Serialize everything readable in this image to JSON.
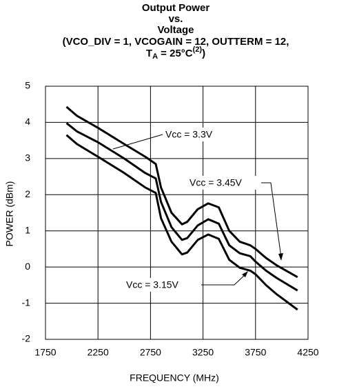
{
  "chart_data": {
    "type": "line",
    "title": [
      "Output Power",
      "vs.",
      "Voltage",
      "(VCO_DIV = 1, VCOGAIN = 12, OUTTERM = 12,"
    ],
    "title_last_line": [
      "T",
      "A",
      " = 25°C",
      "(2)",
      ")"
    ],
    "x_label": "FREQUENCY (MHz)",
    "y_label": "POWER (dBm)",
    "x": [
      1950,
      2050,
      2250,
      2500,
      2700,
      2800,
      2850,
      2950,
      3050,
      3100,
      3200,
      3300,
      3400,
      3500,
      3600,
      3700,
      3750,
      3850,
      3950,
      4150
    ],
    "series": [
      {
        "name": "Vcc = 3.45V",
        "color": "#000000",
        "values": [
          4.43,
          4.18,
          3.85,
          3.4,
          3.05,
          2.85,
          2.2,
          1.5,
          1.18,
          1.25,
          1.6,
          1.76,
          1.65,
          1.0,
          0.7,
          0.6,
          0.5,
          0.25,
          0.05,
          -0.28
        ]
      },
      {
        "name": "Vcc = 3.3V",
        "color": "#000000",
        "values": [
          3.98,
          3.75,
          3.45,
          3.0,
          2.6,
          2.45,
          1.8,
          1.1,
          0.75,
          0.8,
          1.15,
          1.32,
          1.2,
          0.6,
          0.38,
          0.3,
          0.15,
          -0.1,
          -0.3,
          -0.65
        ]
      },
      {
        "name": "Vcc = 3.15V",
        "color": "#000000",
        "values": [
          3.65,
          3.4,
          3.05,
          2.6,
          2.2,
          2.05,
          1.35,
          0.7,
          0.35,
          0.4,
          0.75,
          0.9,
          0.78,
          0.2,
          -0.02,
          -0.1,
          -0.2,
          -0.5,
          -0.75,
          -1.18
        ]
      }
    ],
    "xlim": [
      1750,
      4250
    ],
    "xticks": [
      1750,
      2250,
      2750,
      3250,
      3750,
      4250
    ],
    "ylim": [
      -2,
      5
    ],
    "yticks": [
      -2,
      -1,
      0,
      1,
      2,
      3,
      4,
      5
    ],
    "grid": true
  }
}
